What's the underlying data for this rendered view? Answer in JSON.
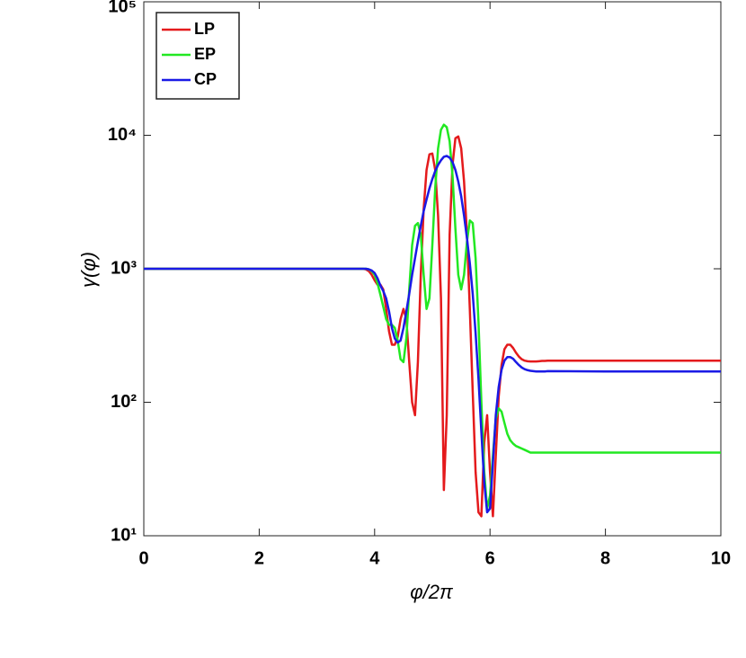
{
  "chart_data": {
    "type": "line",
    "xlabel": "φ/2π",
    "ylabel": "γ(φ)",
    "ylog": true,
    "grid": false,
    "legend": "northwest",
    "x": [
      0,
      1,
      2,
      3,
      3.5,
      3.8,
      3.85,
      3.9,
      3.95,
      4.0,
      4.05,
      4.1,
      4.15,
      4.2,
      4.25,
      4.3,
      4.35,
      4.4,
      4.45,
      4.5,
      4.55,
      4.6,
      4.65,
      4.7,
      4.75,
      4.8,
      4.85,
      4.9,
      4.95,
      5.0,
      5.05,
      5.1,
      5.15,
      5.2,
      5.25,
      5.3,
      5.35,
      5.4,
      5.45,
      5.5,
      5.55,
      5.6,
      5.65,
      5.7,
      5.75,
      5.8,
      5.85,
      5.9,
      5.95,
      6.0,
      6.05,
      6.1,
      6.15,
      6.2,
      6.25,
      6.3,
      6.35,
      6.4,
      6.45,
      6.5,
      6.55,
      6.6,
      6.65,
      6.7,
      6.75,
      6.8,
      6.85,
      6.9,
      6.95,
      7.0,
      8,
      9,
      10
    ],
    "series": [
      {
        "name": "LP",
        "color": "#e41a1c",
        "values": [
          1000,
          1000,
          1000,
          1000,
          1000,
          1000,
          990,
          960,
          900,
          820,
          760,
          760,
          700,
          500,
          340,
          270,
          270,
          310,
          420,
          500,
          420,
          200,
          100,
          80,
          200,
          900,
          2800,
          5500,
          7200,
          7300,
          5500,
          2500,
          600,
          22,
          80,
          1800,
          6000,
          9500,
          9800,
          8000,
          4500,
          1800,
          500,
          120,
          30,
          15,
          14,
          50,
          80,
          30,
          14,
          40,
          110,
          190,
          250,
          270,
          270,
          255,
          235,
          220,
          210,
          205,
          203,
          202,
          202,
          202,
          203,
          204,
          204,
          205,
          205,
          205,
          205
        ]
      },
      {
        "name": "EP",
        "color": "#22e822",
        "values": [
          1000,
          1000,
          1000,
          1000,
          1000,
          1000,
          1000,
          990,
          960,
          900,
          780,
          640,
          520,
          420,
          380,
          380,
          360,
          290,
          210,
          200,
          300,
          700,
          1500,
          2100,
          2200,
          1800,
          900,
          500,
          600,
          1500,
          4000,
          8000,
          11000,
          12000,
          11500,
          9000,
          5000,
          2000,
          900,
          700,
          900,
          1600,
          2300,
          2200,
          1200,
          400,
          100,
          30,
          16,
          20,
          40,
          75,
          90,
          85,
          70,
          58,
          52,
          49,
          47,
          46,
          45,
          44,
          43,
          42,
          42,
          42,
          42,
          42,
          42,
          42,
          42,
          42,
          42
        ]
      },
      {
        "name": "CP",
        "color": "#1a1ae6",
        "values": [
          1000,
          1000,
          1000,
          1000,
          1000,
          1000,
          1000,
          990,
          970,
          930,
          850,
          750,
          680,
          600,
          480,
          360,
          300,
          280,
          290,
          360,
          480,
          650,
          900,
          1200,
          1600,
          2100,
          2700,
          3300,
          4000,
          4700,
          5400,
          6000,
          6500,
          6900,
          7000,
          6800,
          6300,
          5500,
          4500,
          3500,
          2500,
          1700,
          1100,
          650,
          330,
          150,
          60,
          25,
          15,
          16,
          35,
          80,
          130,
          175,
          205,
          218,
          218,
          212,
          200,
          190,
          182,
          177,
          174,
          172,
          171,
          170,
          170,
          170,
          170,
          171,
          170,
          170,
          170
        ]
      }
    ],
    "xlim": [
      0,
      10
    ],
    "xticks": [
      0,
      2,
      4,
      6,
      8,
      10
    ],
    "ylim": [
      10,
      100000
    ],
    "yticks": [
      {
        "value": 10,
        "label": "10¹"
      },
      {
        "value": 100,
        "label": "10²"
      },
      {
        "value": 1000,
        "label": "10³"
      },
      {
        "value": 10000,
        "label": "10⁴"
      },
      {
        "value": 100000,
        "label": "10⁵"
      }
    ]
  }
}
